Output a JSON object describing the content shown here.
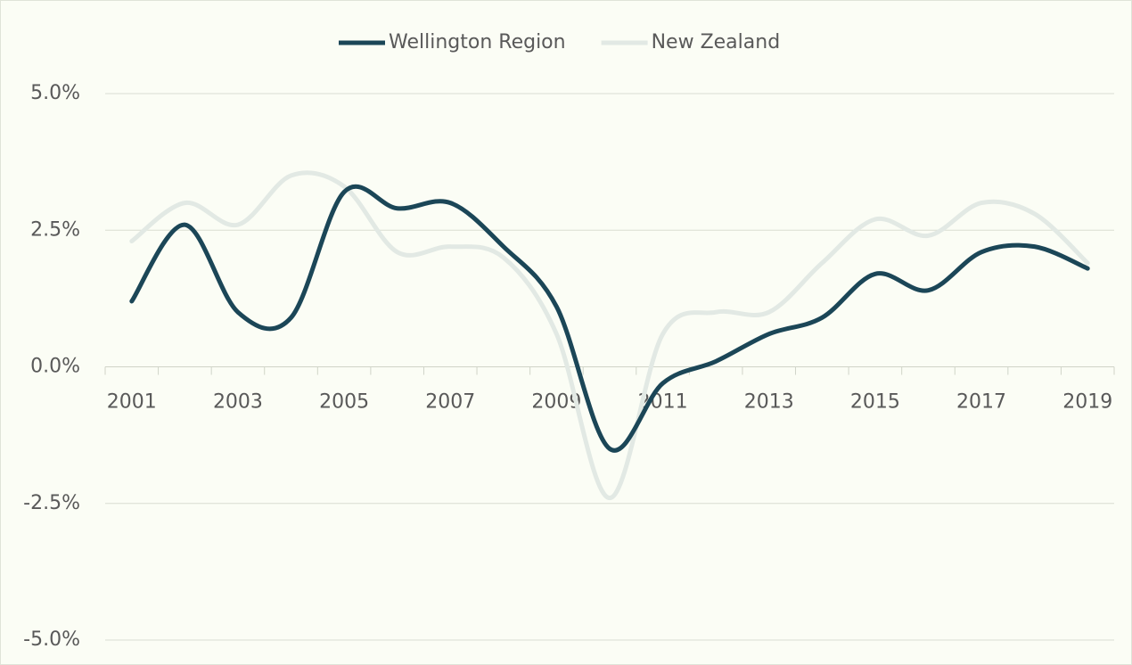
{
  "chart_data": {
    "type": "line",
    "categories": [
      "2001",
      null,
      "2003",
      null,
      "2005",
      null,
      "2007",
      null,
      "2009",
      null,
      "2011",
      null,
      "2013",
      null,
      "2015",
      null,
      "2017",
      null,
      "2019"
    ],
    "series": [
      {
        "name": "Wellington Region",
        "color": "#1b4657",
        "values": [
          1.2,
          2.6,
          1.0,
          0.9,
          3.2,
          2.9,
          3.0,
          2.2,
          1.1,
          -1.5,
          -0.3,
          0.1,
          0.6,
          0.9,
          1.7,
          1.4,
          2.1,
          2.2,
          1.8
        ]
      },
      {
        "name": "New Zealand",
        "color": "#e2e9e4",
        "values": [
          2.3,
          3.0,
          2.6,
          3.5,
          3.3,
          2.1,
          2.2,
          2.0,
          0.6,
          -2.4,
          0.6,
          1.0,
          1.0,
          1.9,
          2.7,
          2.4,
          3.0,
          2.8,
          1.9
        ]
      }
    ],
    "ylim": [
      -5,
      5
    ],
    "yticks": [
      {
        "value": -5,
        "label": "-5.0%"
      },
      {
        "value": -2.5,
        "label": "-2.5%"
      },
      {
        "value": 0,
        "label": "0.0%"
      },
      {
        "value": 2.5,
        "label": "2.5%"
      },
      {
        "value": 5,
        "label": "5.0%"
      }
    ],
    "grid": true,
    "legend": "top",
    "smooth": true
  }
}
